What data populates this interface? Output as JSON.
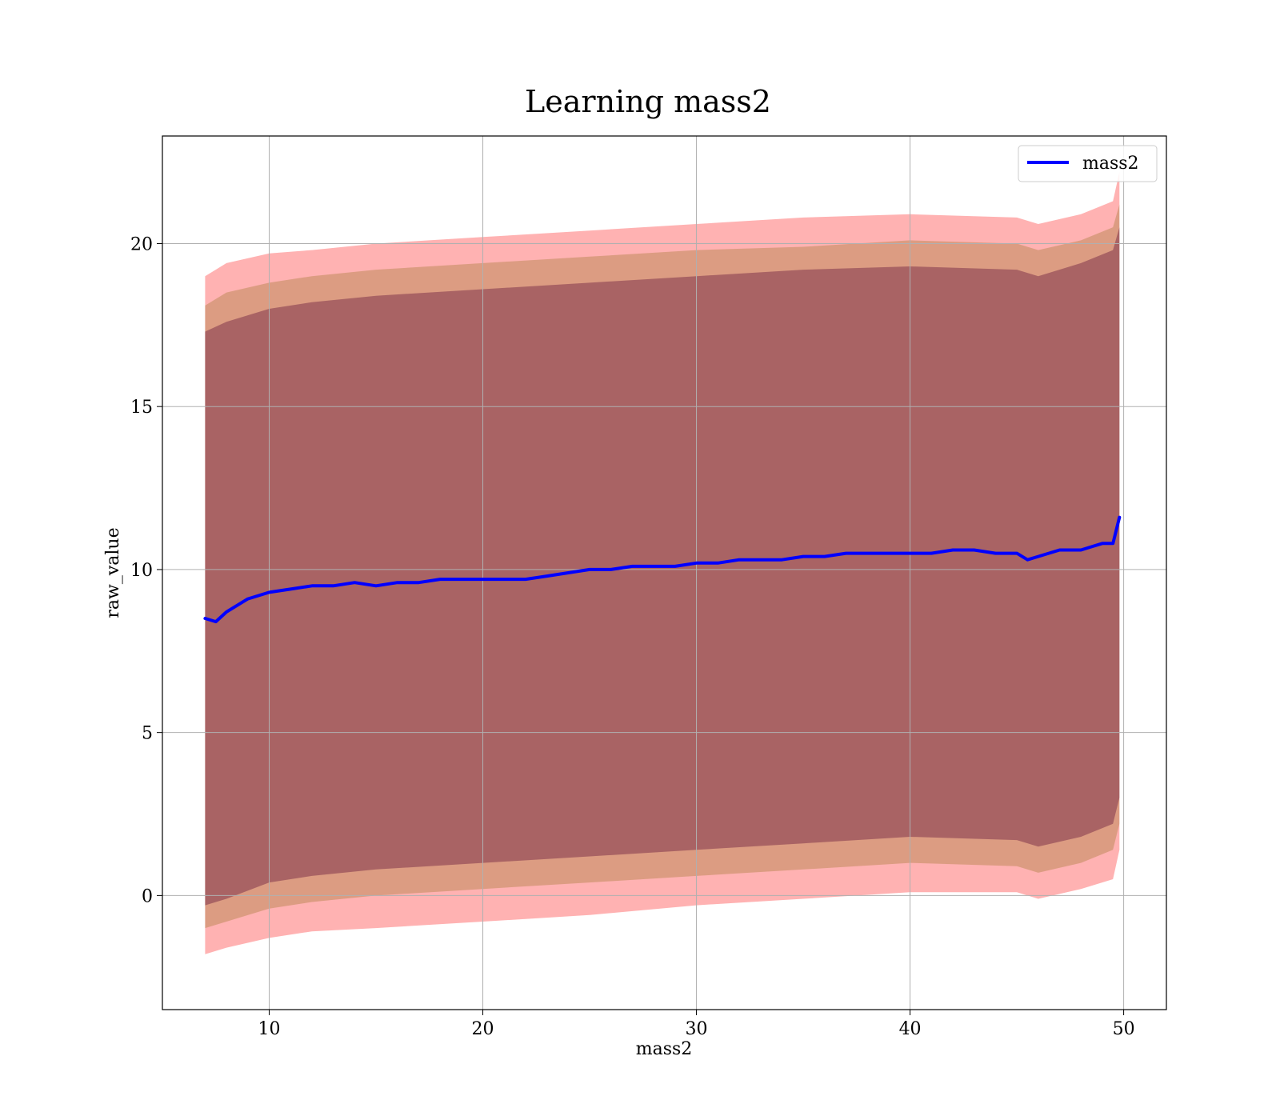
{
  "chart_data": {
    "type": "line",
    "title": "Learning mass2",
    "xlabel": "mass2",
    "ylabel": "raw_value",
    "xlim": [
      5,
      52
    ],
    "ylim": [
      -3.5,
      23.3
    ],
    "xticks": [
      10,
      20,
      30,
      40,
      50
    ],
    "yticks": [
      0,
      5,
      10,
      15,
      20
    ],
    "grid": true,
    "legend_position": "top-right",
    "series": [
      {
        "name": "mass2",
        "color": "#0000ff",
        "x": [
          7,
          7.5,
          8,
          8.5,
          9,
          10,
          11,
          12,
          13,
          14,
          15,
          16,
          17,
          18,
          19,
          20,
          21,
          22,
          23,
          24,
          25,
          26,
          27,
          28,
          29,
          30,
          31,
          32,
          33,
          34,
          35,
          36,
          37,
          38,
          39,
          40,
          41,
          42,
          43,
          44,
          45,
          45.5,
          46,
          47,
          48,
          48.5,
          49,
          49.5,
          49.8
        ],
        "y": [
          8.5,
          8.4,
          8.7,
          8.9,
          9.1,
          9.3,
          9.4,
          9.5,
          9.5,
          9.6,
          9.5,
          9.6,
          9.6,
          9.7,
          9.7,
          9.7,
          9.7,
          9.7,
          9.8,
          9.9,
          10.0,
          10.0,
          10.1,
          10.1,
          10.1,
          10.2,
          10.2,
          10.3,
          10.3,
          10.3,
          10.4,
          10.4,
          10.5,
          10.5,
          10.5,
          10.5,
          10.5,
          10.6,
          10.6,
          10.5,
          10.5,
          10.3,
          10.4,
          10.6,
          10.6,
          10.7,
          10.8,
          10.8,
          11.6
        ]
      }
    ],
    "bands": [
      {
        "color": "#ff0000",
        "opacity": 0.3,
        "x": [
          7,
          8,
          10,
          12,
          15,
          20,
          25,
          30,
          35,
          40,
          45,
          46,
          48,
          49.5,
          49.8
        ],
        "upper": [
          19.0,
          19.4,
          19.7,
          19.8,
          20.0,
          20.2,
          20.4,
          20.6,
          20.8,
          20.9,
          20.8,
          20.6,
          20.9,
          21.3,
          22.2
        ],
        "lower": [
          -1.8,
          -1.6,
          -1.3,
          -1.1,
          -1.0,
          -0.8,
          -0.6,
          -0.3,
          -0.1,
          0.1,
          0.1,
          -0.1,
          0.2,
          0.5,
          1.4
        ]
      },
      {
        "color": "#8b6914",
        "opacity": 0.3,
        "x": [
          7,
          8,
          10,
          12,
          15,
          20,
          25,
          30,
          35,
          40,
          45,
          46,
          48,
          49.5,
          49.8
        ],
        "upper": [
          18.1,
          18.5,
          18.8,
          19.0,
          19.2,
          19.4,
          19.6,
          19.8,
          19.9,
          20.1,
          20.0,
          19.8,
          20.1,
          20.5,
          21.2
        ],
        "lower": [
          -1.0,
          -0.8,
          -0.4,
          -0.2,
          0.0,
          0.2,
          0.4,
          0.6,
          0.8,
          1.0,
          0.9,
          0.7,
          1.0,
          1.4,
          2.2
        ]
      },
      {
        "color": "#6b2040",
        "opacity": 0.45,
        "x": [
          7,
          8,
          10,
          12,
          15,
          20,
          25,
          30,
          35,
          40,
          45,
          46,
          48,
          49.5,
          49.8
        ],
        "upper": [
          17.3,
          17.6,
          18.0,
          18.2,
          18.4,
          18.6,
          18.8,
          19.0,
          19.2,
          19.3,
          19.2,
          19.0,
          19.4,
          19.8,
          20.5
        ],
        "lower": [
          -0.3,
          -0.1,
          0.4,
          0.6,
          0.8,
          1.0,
          1.2,
          1.4,
          1.6,
          1.8,
          1.7,
          1.5,
          1.8,
          2.2,
          3.0
        ]
      }
    ]
  }
}
